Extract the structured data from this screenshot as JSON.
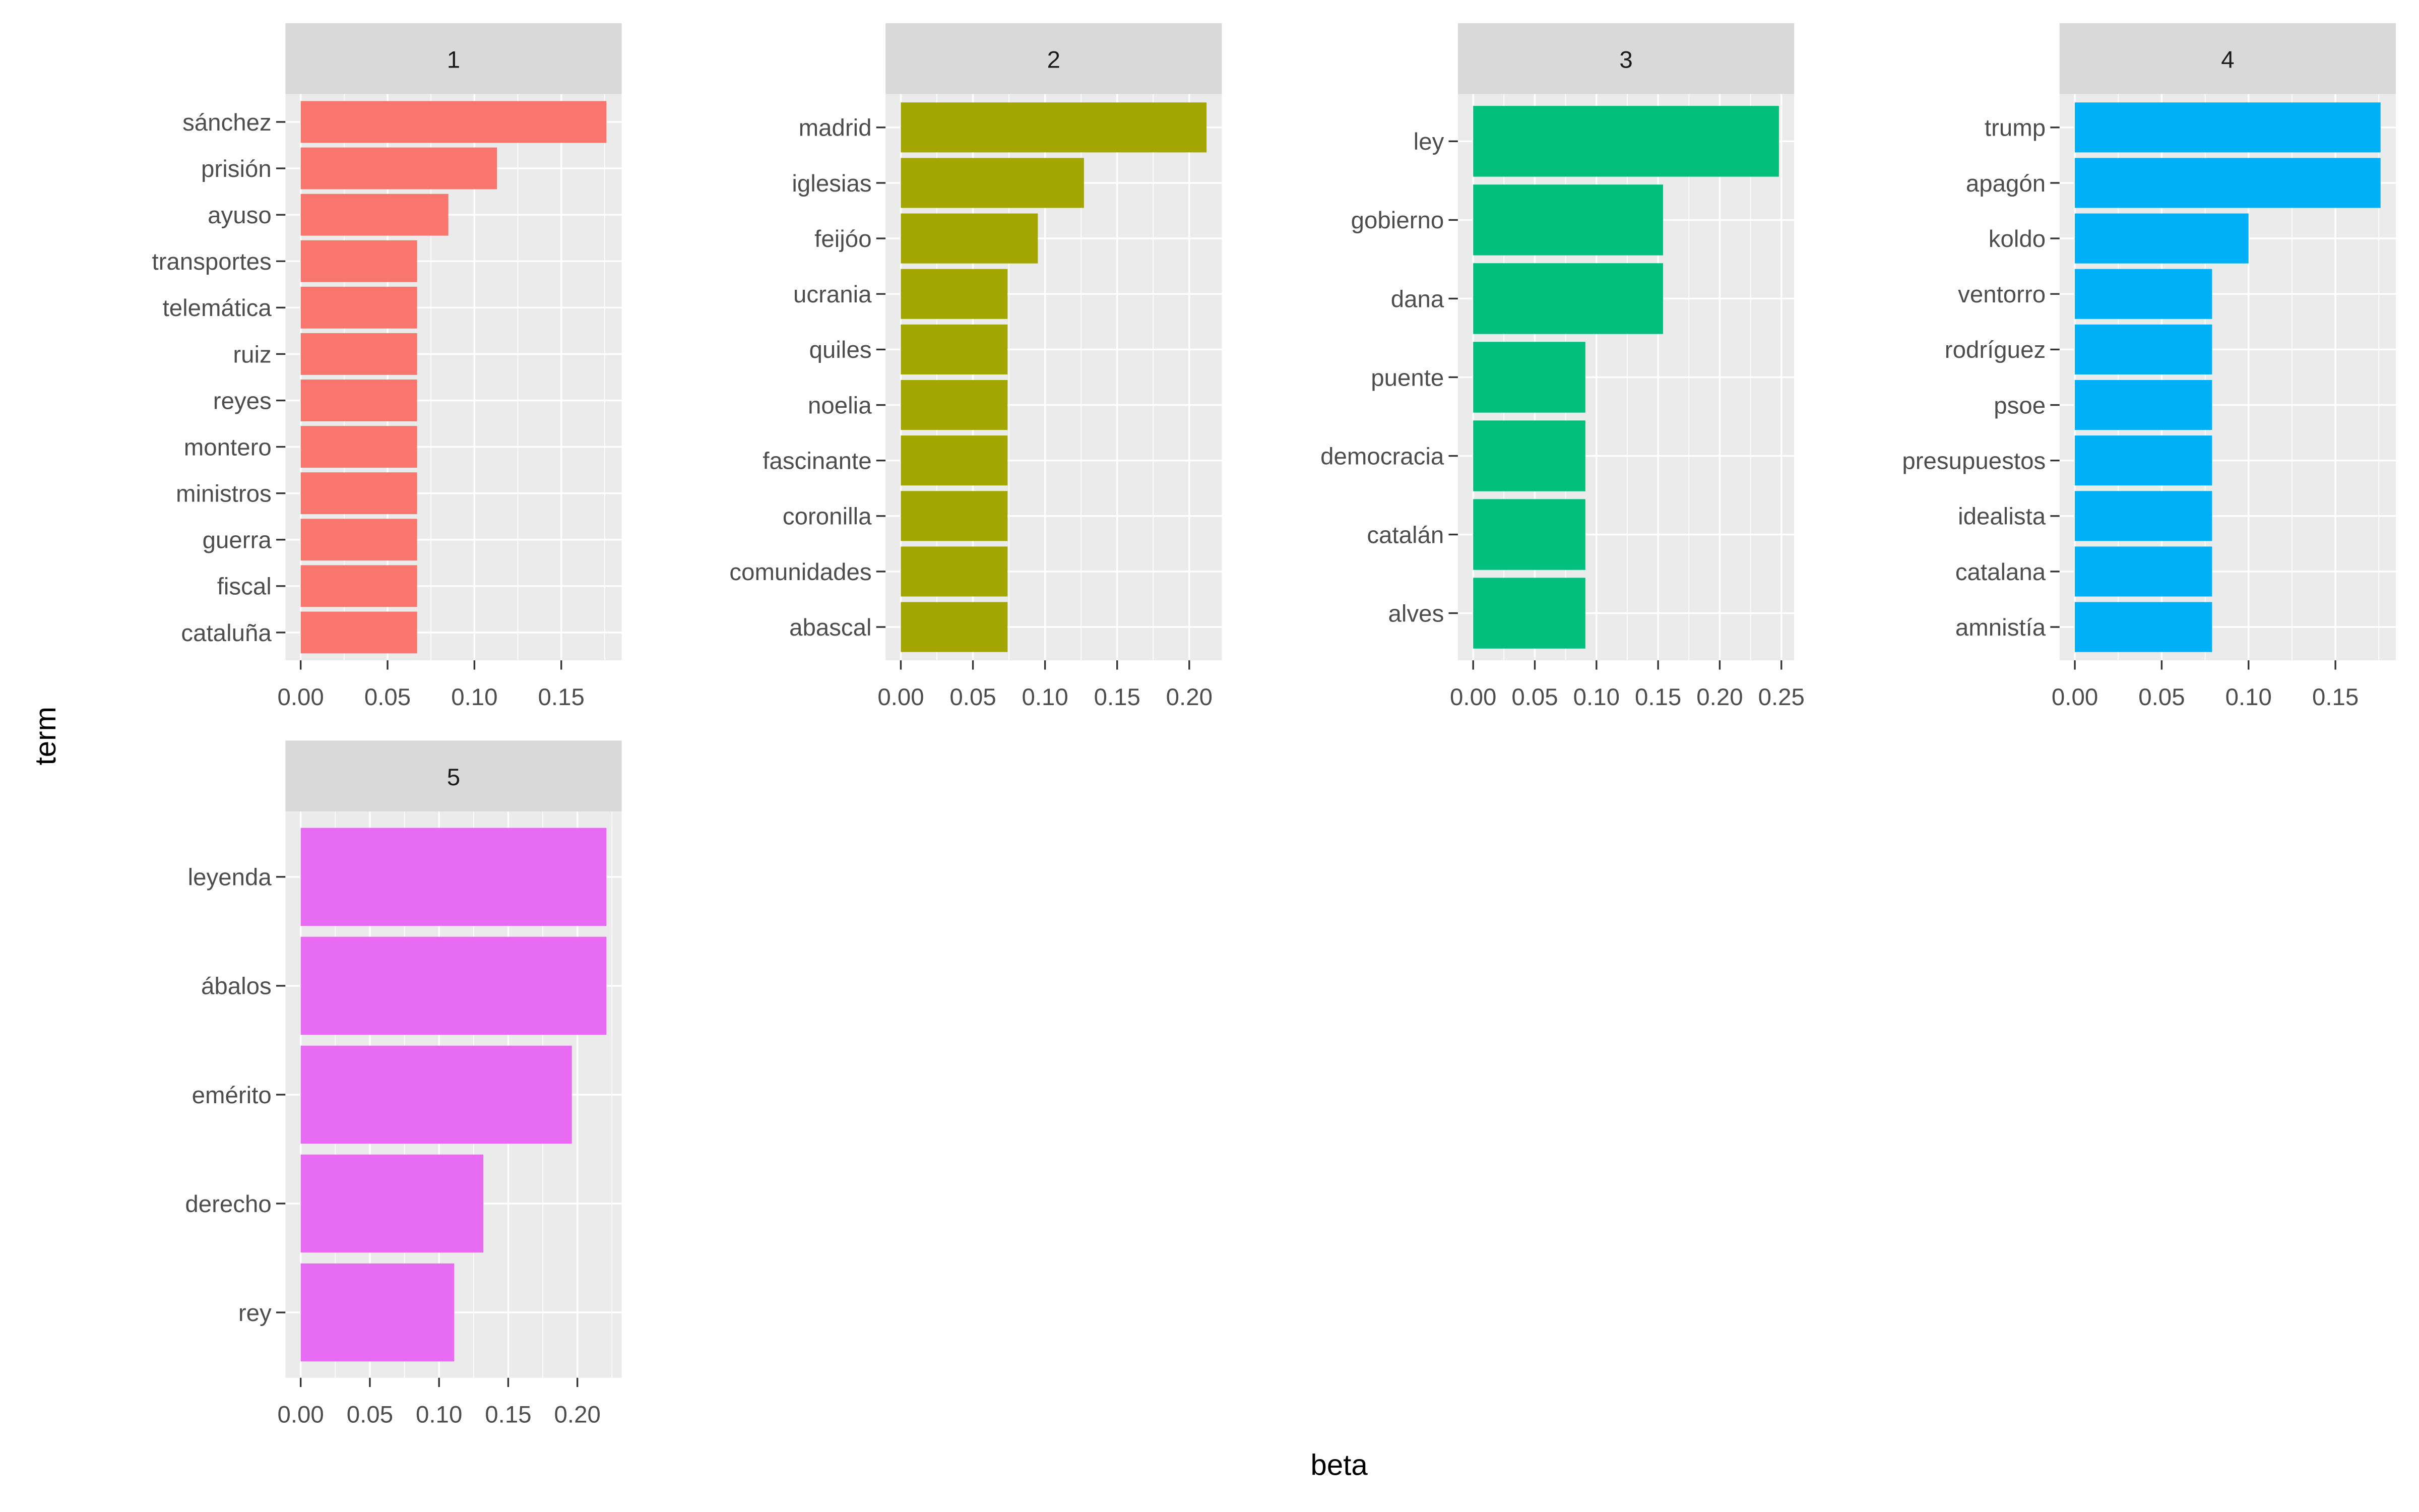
{
  "chart_data": {
    "type": "bar",
    "orientation": "horizontal",
    "facet": true,
    "xlabel": "beta",
    "ylabel": "term",
    "grid": true,
    "panels": [
      {
        "label": "1",
        "color": "#F8766D",
        "terms": [
          "sánchez",
          "prisión",
          "ayuso",
          "transportes",
          "telemática",
          "ruiz",
          "reyes",
          "montero",
          "ministros",
          "guerra",
          "fiscal",
          "cataluña"
        ],
        "values": [
          0.176,
          0.113,
          0.085,
          0.067,
          0.067,
          0.067,
          0.067,
          0.067,
          0.067,
          0.067,
          0.067,
          0.067
        ],
        "ticks": [
          "0.00",
          "0.05",
          "0.10",
          "0.15"
        ],
        "tick_values": [
          0,
          0.05,
          0.1,
          0.15
        ]
      },
      {
        "label": "2",
        "color": "#A3A500",
        "terms": [
          "madrid",
          "iglesias",
          "feijóo",
          "ucrania",
          "quiles",
          "noelia",
          "fascinante",
          "coronilla",
          "comunidades",
          "abascal"
        ],
        "values": [
          0.212,
          0.127,
          0.095,
          0.074,
          0.074,
          0.074,
          0.074,
          0.074,
          0.074,
          0.074
        ],
        "ticks": [
          "0.00",
          "0.05",
          "0.10",
          "0.15",
          "0.20"
        ],
        "tick_values": [
          0,
          0.05,
          0.1,
          0.15,
          0.2
        ]
      },
      {
        "label": "3",
        "color": "#00BF7D",
        "terms": [
          "ley",
          "gobierno",
          "dana",
          "puente",
          "democracia",
          "catalán",
          "alves"
        ],
        "values": [
          0.248,
          0.154,
          0.154,
          0.091,
          0.091,
          0.091,
          0.091
        ],
        "ticks": [
          "0.00",
          "0.05",
          "0.10",
          "0.15",
          "0.20",
          "0.25"
        ],
        "tick_values": [
          0,
          0.05,
          0.1,
          0.15,
          0.2,
          0.25
        ]
      },
      {
        "label": "4",
        "color": "#00B0F6",
        "terms": [
          "trump",
          "apagón",
          "koldo",
          "ventorro",
          "rodríguez",
          "psoe",
          "presupuestos",
          "idealista",
          "catalana",
          "amnistía"
        ],
        "values": [
          0.176,
          0.176,
          0.1,
          0.079,
          0.079,
          0.079,
          0.079,
          0.079,
          0.079,
          0.079
        ],
        "ticks": [
          "0.00",
          "0.05",
          "0.10",
          "0.15"
        ],
        "tick_values": [
          0,
          0.05,
          0.1,
          0.15
        ]
      },
      {
        "label": "5",
        "color": "#E76BF3",
        "terms": [
          "leyenda",
          "ábalos",
          "emérito",
          "derecho",
          "rey"
        ],
        "values": [
          0.221,
          0.221,
          0.196,
          0.132,
          0.111
        ],
        "ticks": [
          "0.00",
          "0.05",
          "0.10",
          "0.15",
          "0.20"
        ],
        "tick_values": [
          0,
          0.05,
          0.1,
          0.15,
          0.2
        ]
      }
    ]
  }
}
